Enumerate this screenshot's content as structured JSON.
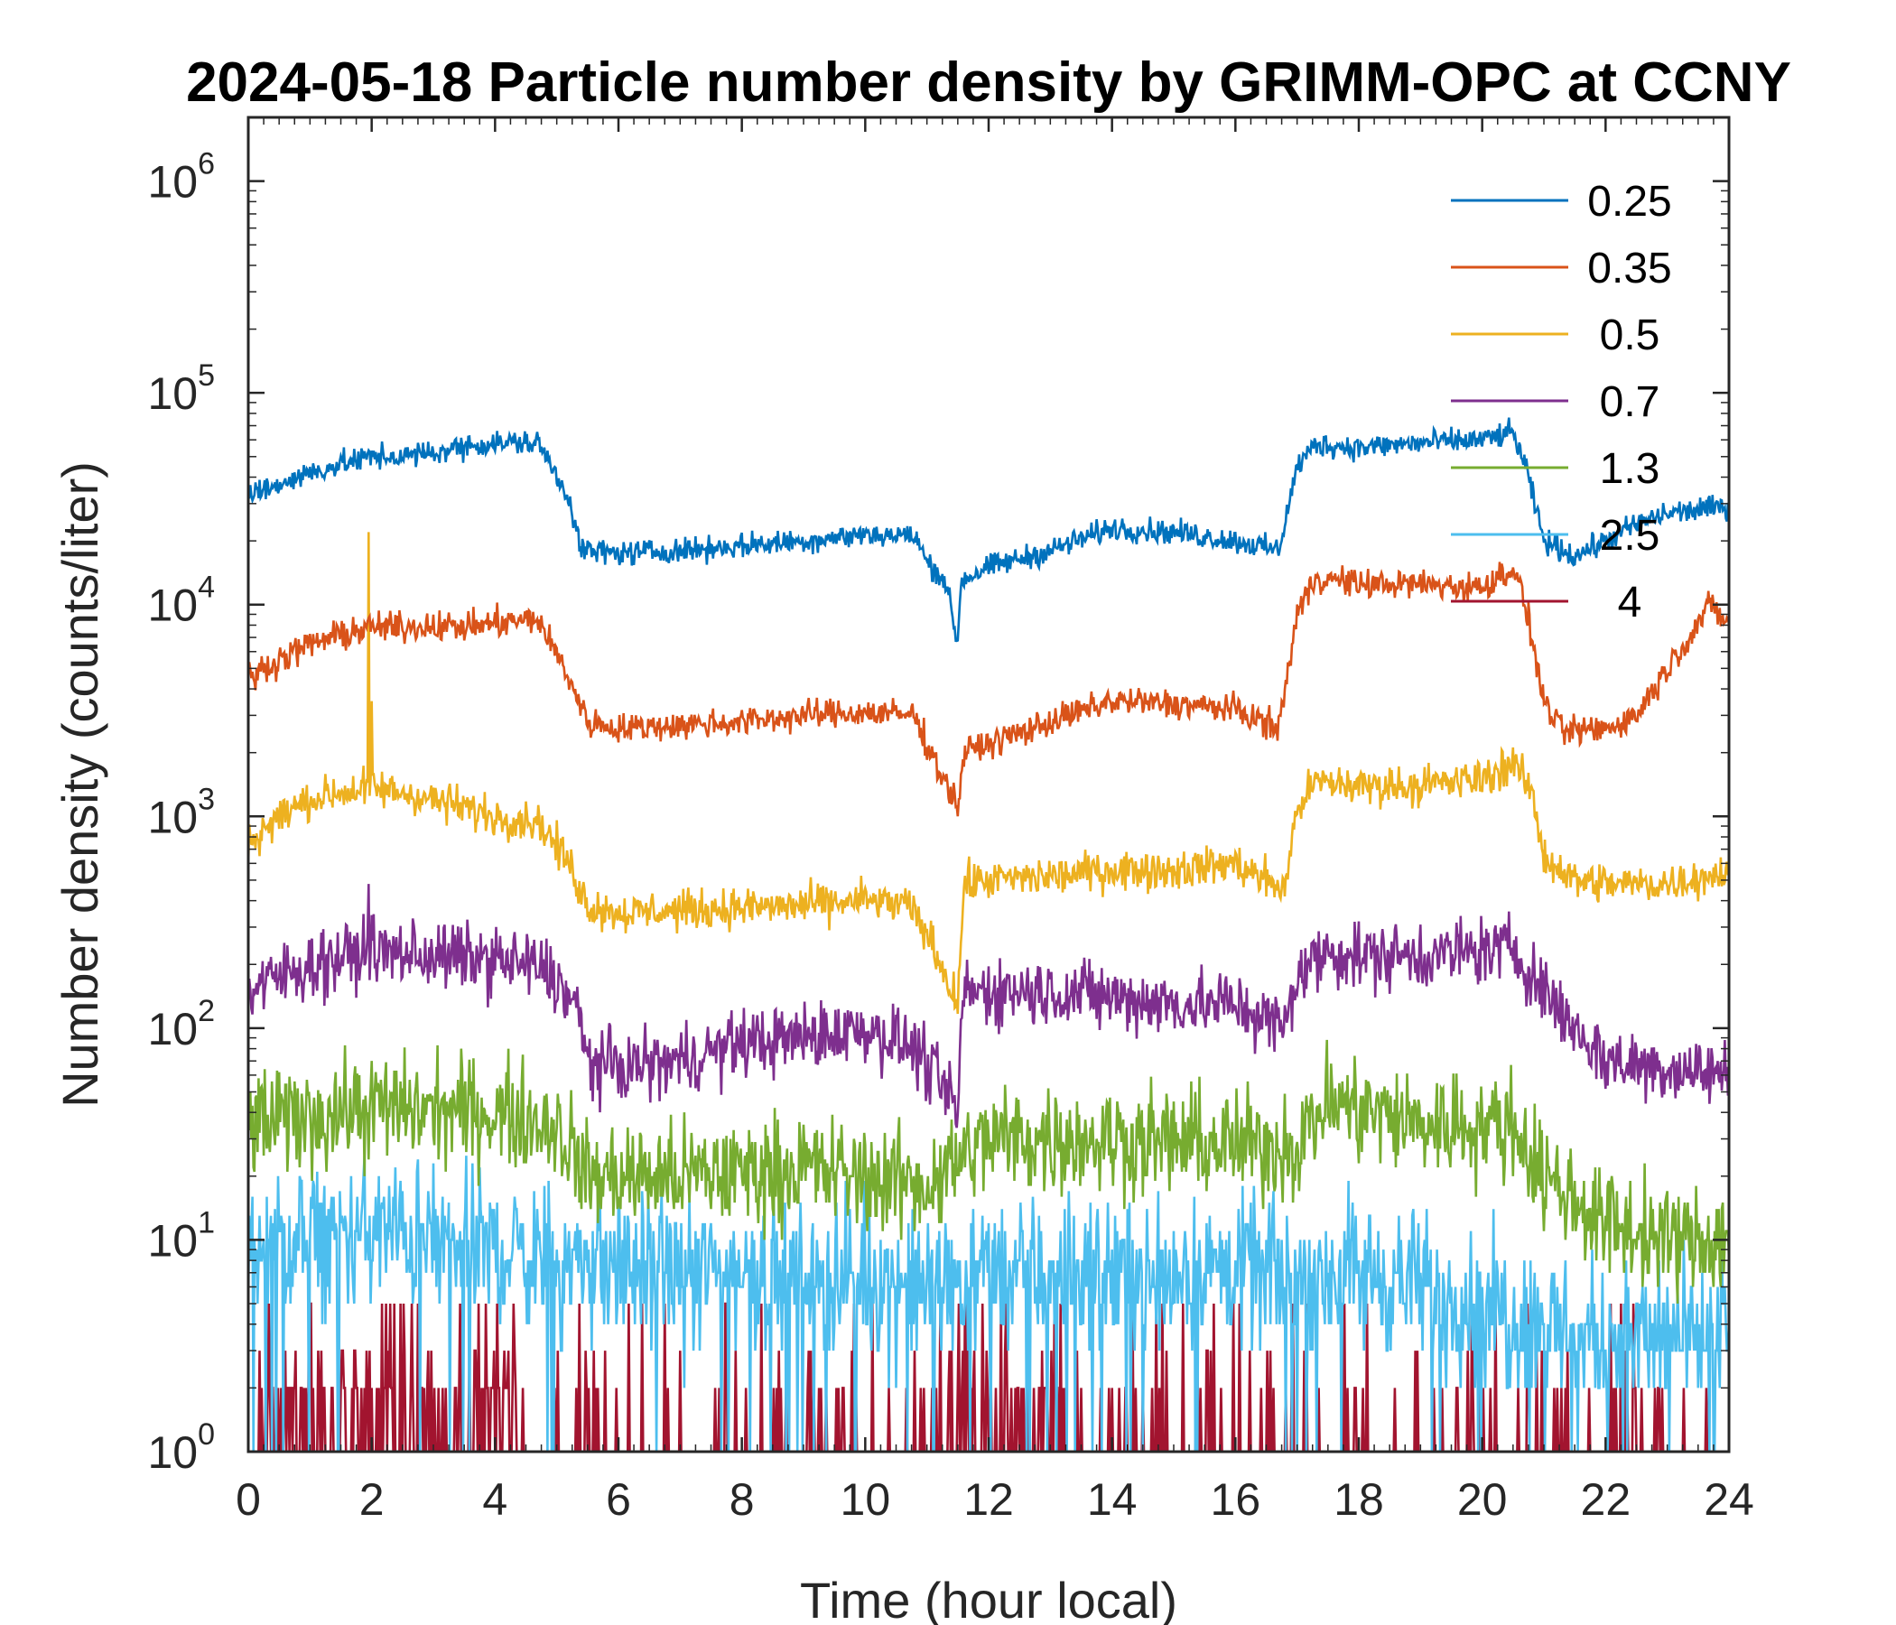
{
  "chart_data": {
    "type": "line",
    "title": "2024-05-18 Particle number density by GRIMM-OPC at CCNY",
    "xlabel": "Time (hour local)",
    "ylabel": "Number density (counts/liter)",
    "xlim": [
      0,
      24
    ],
    "ylim": [
      1,
      2000000
    ],
    "yscale": "log",
    "xticks": [
      0,
      2,
      4,
      6,
      8,
      10,
      12,
      14,
      16,
      18,
      20,
      22,
      24
    ],
    "yticks": [
      {
        "value": 1,
        "base": "10",
        "exp": "0"
      },
      {
        "value": 10,
        "base": "10",
        "exp": "1"
      },
      {
        "value": 100,
        "base": "10",
        "exp": "2"
      },
      {
        "value": 1000,
        "base": "10",
        "exp": "3"
      },
      {
        "value": 10000,
        "base": "10",
        "exp": "4"
      },
      {
        "value": 100000,
        "base": "10",
        "exp": "5"
      },
      {
        "value": 1000000,
        "base": "10",
        "exp": "6"
      }
    ],
    "grid": false,
    "legend_position": "top-right",
    "series": [
      {
        "name": "0.25",
        "color": "#0072BD",
        "noise": 0.05,
        "points": [
          [
            0,
            33000
          ],
          [
            0.5,
            37000
          ],
          [
            1,
            42000
          ],
          [
            1.5,
            46000
          ],
          [
            2,
            50000
          ],
          [
            2.5,
            50000
          ],
          [
            3,
            52000
          ],
          [
            3.5,
            56000
          ],
          [
            4,
            58000
          ],
          [
            4.7,
            58000
          ],
          [
            5.2,
            32000
          ],
          [
            5.4,
            18000
          ],
          [
            6,
            17500
          ],
          [
            7,
            18000
          ],
          [
            8,
            19000
          ],
          [
            9,
            20000
          ],
          [
            10,
            21500
          ],
          [
            10.8,
            21000
          ],
          [
            11,
            16000
          ],
          [
            11.3,
            13000
          ],
          [
            11.5,
            6500
          ],
          [
            11.55,
            13000
          ],
          [
            12,
            15000
          ],
          [
            13,
            18000
          ],
          [
            14,
            23000
          ],
          [
            15,
            22000
          ],
          [
            16,
            20000
          ],
          [
            16.7,
            18000
          ],
          [
            17,
            45000
          ],
          [
            17.3,
            57000
          ],
          [
            18,
            55000
          ],
          [
            19,
            58000
          ],
          [
            20,
            60000
          ],
          [
            20.5,
            65000
          ],
          [
            20.7,
            45000
          ],
          [
            21,
            20000
          ],
          [
            21.5,
            17000
          ],
          [
            22,
            20000
          ],
          [
            22.5,
            24000
          ],
          [
            23,
            27000
          ],
          [
            24,
            29000
          ]
        ]
      },
      {
        "name": "0.35",
        "color": "#D95319",
        "noise": 0.06,
        "points": [
          [
            0,
            4500
          ],
          [
            0.5,
            5500
          ],
          [
            1,
            6500
          ],
          [
            1.5,
            7200
          ],
          [
            2,
            7800
          ],
          [
            2.5,
            7800
          ],
          [
            3,
            8000
          ],
          [
            3.5,
            7800
          ],
          [
            4,
            8200
          ],
          [
            4.7,
            8500
          ],
          [
            5.2,
            4500
          ],
          [
            5.5,
            2800
          ],
          [
            6,
            2600
          ],
          [
            7,
            2700
          ],
          [
            8,
            2800
          ],
          [
            9,
            3000
          ],
          [
            10,
            3100
          ],
          [
            10.8,
            3000
          ],
          [
            11,
            2200
          ],
          [
            11.5,
            1100
          ],
          [
            11.6,
            2000
          ],
          [
            12,
            2200
          ],
          [
            13,
            2800
          ],
          [
            14,
            3500
          ],
          [
            15,
            3400
          ],
          [
            16,
            3200
          ],
          [
            16.7,
            2600
          ],
          [
            17,
            9000
          ],
          [
            17.3,
            13500
          ],
          [
            18,
            12500
          ],
          [
            19,
            12500
          ],
          [
            20,
            12000
          ],
          [
            20.5,
            15000
          ],
          [
            20.7,
            10000
          ],
          [
            21,
            3500
          ],
          [
            21.3,
            2500
          ],
          [
            22,
            2600
          ],
          [
            22.5,
            3000
          ],
          [
            23,
            5000
          ],
          [
            23.7,
            10000
          ],
          [
            24,
            8000
          ]
        ]
      },
      {
        "name": "0.5",
        "color": "#EDB120",
        "noise": 0.08,
        "spikes": [
          [
            1.95,
            22000
          ],
          [
            2,
            3500
          ]
        ],
        "points": [
          [
            0,
            750
          ],
          [
            0.5,
            1000
          ],
          [
            1,
            1200
          ],
          [
            1.5,
            1300
          ],
          [
            2,
            1350
          ],
          [
            2.5,
            1300
          ],
          [
            3,
            1200
          ],
          [
            3.5,
            1100
          ],
          [
            4,
            1000
          ],
          [
            4.7,
            950
          ],
          [
            5.2,
            600
          ],
          [
            5.5,
            380
          ],
          [
            6,
            350
          ],
          [
            7,
            360
          ],
          [
            8,
            370
          ],
          [
            9,
            380
          ],
          [
            10,
            400
          ],
          [
            10.7,
            380
          ],
          [
            11,
            280
          ],
          [
            11.3,
            180
          ],
          [
            11.5,
            130
          ],
          [
            11.6,
            480
          ],
          [
            12,
            500
          ],
          [
            13,
            520
          ],
          [
            14,
            560
          ],
          [
            15,
            560
          ],
          [
            16,
            600
          ],
          [
            16.8,
            450
          ],
          [
            17,
            1100
          ],
          [
            17.3,
            1450
          ],
          [
            18,
            1400
          ],
          [
            19,
            1400
          ],
          [
            20,
            1500
          ],
          [
            20.5,
            1800
          ],
          [
            20.8,
            1300
          ],
          [
            21,
            650
          ],
          [
            21.5,
            500
          ],
          [
            22,
            480
          ],
          [
            23,
            480
          ],
          [
            24,
            550
          ]
        ]
      },
      {
        "name": "0.7",
        "color": "#7E2F8E",
        "noise": 0.14,
        "spikes": [
          [
            1.95,
            480
          ],
          [
            11.55,
            110
          ]
        ],
        "points": [
          [
            0,
            150
          ],
          [
            1,
            200
          ],
          [
            2,
            230
          ],
          [
            3,
            220
          ],
          [
            4,
            210
          ],
          [
            4.8,
            190
          ],
          [
            5.3,
            130
          ],
          [
            5.5,
            70
          ],
          [
            6,
            65
          ],
          [
            7,
            70
          ],
          [
            8,
            85
          ],
          [
            9,
            90
          ],
          [
            10,
            100
          ],
          [
            10.8,
            80
          ],
          [
            11.3,
            50
          ],
          [
            11.5,
            40
          ],
          [
            11.6,
            150
          ],
          [
            12,
            150
          ],
          [
            13,
            150
          ],
          [
            14,
            140
          ],
          [
            15,
            130
          ],
          [
            16,
            130
          ],
          [
            16.8,
            100
          ],
          [
            17,
            180
          ],
          [
            17.5,
            230
          ],
          [
            18,
            220
          ],
          [
            19,
            220
          ],
          [
            20,
            230
          ],
          [
            20.5,
            240
          ],
          [
            21,
            150
          ],
          [
            21.5,
            100
          ],
          [
            22,
            70
          ],
          [
            23,
            65
          ],
          [
            24,
            60
          ]
        ]
      },
      {
        "name": "1.3",
        "color": "#77AC30",
        "noise": 0.22,
        "points": [
          [
            0,
            35
          ],
          [
            2,
            42
          ],
          [
            4,
            40
          ],
          [
            5,
            35
          ],
          [
            5.5,
            20
          ],
          [
            7,
            20
          ],
          [
            9,
            22
          ],
          [
            11,
            18
          ],
          [
            11.6,
            25
          ],
          [
            12,
            30
          ],
          [
            14,
            30
          ],
          [
            16,
            28
          ],
          [
            17,
            28
          ],
          [
            17.5,
            45
          ],
          [
            19,
            35
          ],
          [
            20.5,
            35
          ],
          [
            21,
            20
          ],
          [
            22,
            12
          ],
          [
            23,
            10
          ],
          [
            24,
            10
          ]
        ]
      },
      {
        "name": "2.5",
        "color": "#4DBEEE",
        "noise": 0.3,
        "points": [
          [
            0,
            9
          ],
          [
            2,
            11
          ],
          [
            3,
            10
          ],
          [
            5,
            8
          ],
          [
            7,
            7
          ],
          [
            9,
            7
          ],
          [
            11,
            6
          ],
          [
            12,
            7
          ],
          [
            14,
            7
          ],
          [
            16,
            7
          ],
          [
            17,
            7
          ],
          [
            18,
            7
          ],
          [
            20,
            5
          ],
          [
            21,
            4
          ],
          [
            22,
            3.5
          ],
          [
            24,
            3.5
          ]
        ]
      },
      {
        "name": "4",
        "color": "#A2142F",
        "noise": 0,
        "points": [
          [
            0,
            1
          ],
          [
            24,
            1
          ]
        ]
      }
    ]
  }
}
